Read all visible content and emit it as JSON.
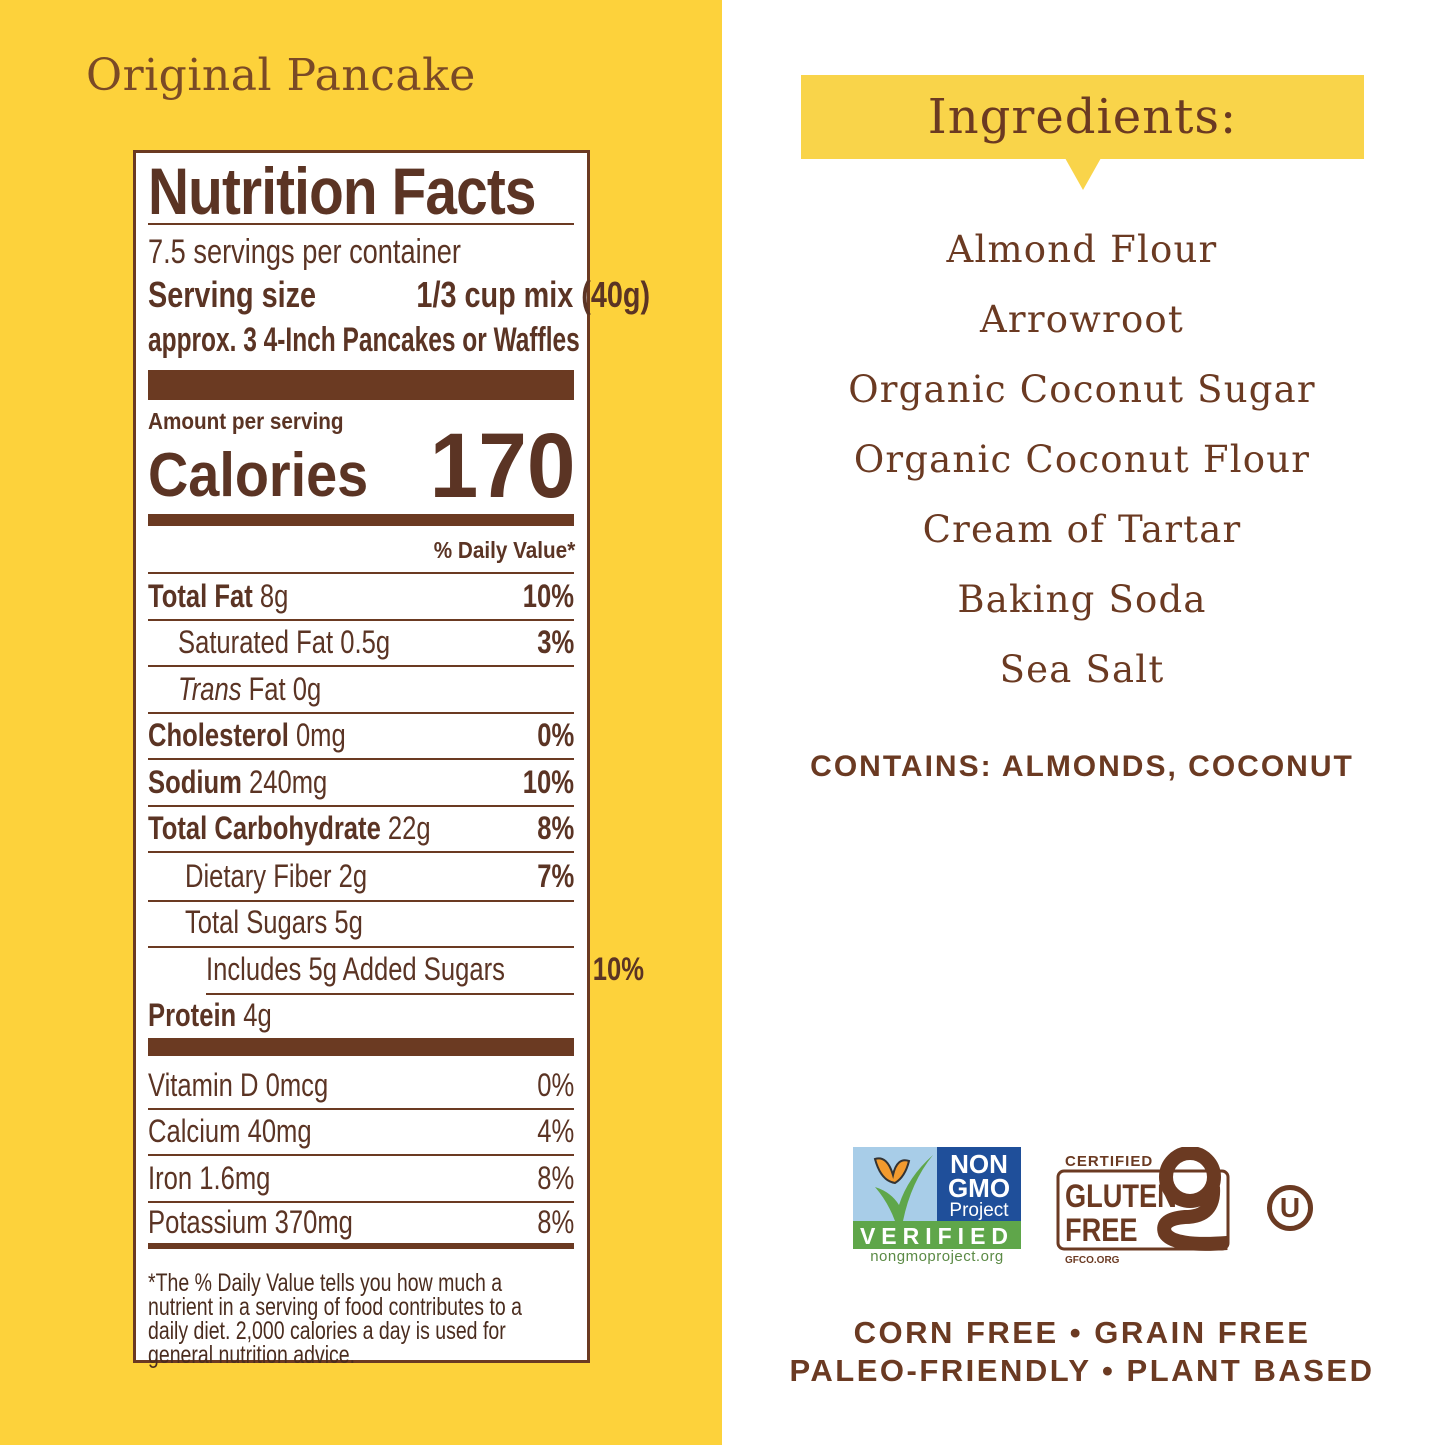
{
  "product_name": "Original Pancake",
  "nutrition": {
    "title": "Nutrition Facts",
    "servings": "7.5 servings per container",
    "serving_size_label": "Serving size",
    "serving_size_value": "1/3 cup mix (40g)",
    "approx": "approx. 3 4-Inch Pancakes or Waffles",
    "amount_per_serving": "Amount per serving",
    "calories_label": "Calories",
    "calories_value": "170",
    "dv_header": "% Daily Value*",
    "rows": [
      {
        "name": "Total Fat",
        "amount": "8g",
        "dv": "10%",
        "indent": 0,
        "bold": true
      },
      {
        "name": "Saturated Fat",
        "amount": "0.5g",
        "dv": "3%",
        "indent": 1,
        "bold": false
      },
      {
        "name": "Trans",
        "name2": "Fat",
        "amount": "0g",
        "dv": "",
        "indent": 1,
        "bold": false,
        "italic": true
      },
      {
        "name": "Cholesterol",
        "amount": "0mg",
        "dv": "0%",
        "indent": 0,
        "bold": true
      },
      {
        "name": "Sodium",
        "amount": "240mg",
        "dv": "10%",
        "indent": 0,
        "bold": true
      },
      {
        "name": "Total Carbohydrate",
        "amount": "22g",
        "dv": "8%",
        "indent": 0,
        "bold": true
      },
      {
        "name": "Dietary Fiber",
        "amount": "2g",
        "dv": "7%",
        "indent": 2,
        "bold": false
      },
      {
        "name": "Total Sugars",
        "amount": "5g",
        "dv": "",
        "indent": 2,
        "bold": false
      },
      {
        "name": "Includes 5g Added Sugars",
        "amount": "",
        "dv": "10%",
        "indent": 3,
        "bold": false
      },
      {
        "name": "Protein",
        "amount": "4g",
        "dv": "",
        "indent": 0,
        "bold": true
      }
    ],
    "micros": [
      {
        "name": "Vitamin D",
        "amount": "0mcg",
        "dv": "0%"
      },
      {
        "name": "Calcium",
        "amount": "40mg",
        "dv": "4%"
      },
      {
        "name": "Iron",
        "amount": "1.6mg",
        "dv": "8%"
      },
      {
        "name": "Potassium",
        "amount": "370mg",
        "dv": "8%"
      }
    ],
    "footnote": "*The % Daily Value tells you how much a nutrient in a serving of food contributes to a daily diet. 2,000 calories a day is used for general nutrition advice."
  },
  "ingredients": {
    "title": "Ingredients:",
    "items": [
      "Almond Flour",
      "Arrowroot",
      "Organic Coconut Sugar",
      "Organic Coconut Flour",
      "Cream of Tartar",
      "Baking Soda",
      "Sea Salt"
    ],
    "contains": "CONTAINS: ALMONDS, COCONUT"
  },
  "badges": {
    "nongmo_lines": [
      "NON",
      "GMO",
      "Project"
    ],
    "nongmo_verified": "VERIFIED",
    "nongmo_url": "nongmoproject.org",
    "gf_certified": "CERTIFIED",
    "gf_lines": [
      "GLUTEN",
      "FREE"
    ],
    "gf_url": "GFCO.ORG",
    "kosher": "U"
  },
  "claims": [
    "CORN FREE • GRAIN FREE",
    "PALEO-FRIENDLY • PLANT BASED"
  ],
  "colors": {
    "yellow": "#fdd23b",
    "brown": "#6b3a22",
    "banner": "#f9d44a",
    "nongmo_blue": "#1f4f9a",
    "nongmo_green": "#5fa64a"
  }
}
